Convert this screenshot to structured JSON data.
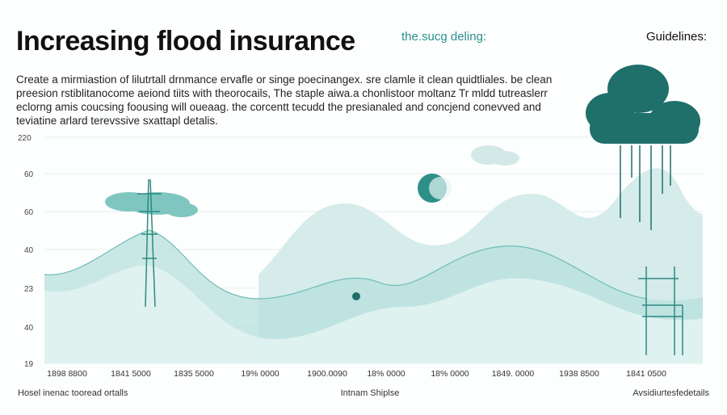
{
  "header": {
    "title": "Increasing flood insurance",
    "tagline": "the.sucg deling:",
    "aside": "Guidelines:"
  },
  "description": [
    "Create a mirmiastion of lilutrtall drnmance ervafle or singe poecinangex. sre clamle it clean quidtliales. be clean",
    "preesion rstiblitanocome aeiond tiits with theorocails, The staple aiwa.a chonlistoor moltanz Tr mldd tutreaslerr",
    "eclorng amis coucsing foousing will oueaag. the corcentt tecudd the presianaled and concjend conevved and",
    "teviatine arlard terevssive sxattapl detalis."
  ],
  "y_labels": [
    "220",
    "60",
    "60",
    "40",
    "23",
    "40",
    "19"
  ],
  "x_labels": [
    "1898 8800",
    "1841 5000",
    "1835 5000",
    "19% 0000",
    "1900.0090",
    "18% 0000",
    "18% 0000",
    "1849. 0000",
    "1938 8500",
    "1841 0500"
  ],
  "footer": {
    "left": "Hosel inenac tooread ortalls",
    "center": "Intnam Shiplse",
    "right": "Avsidiurtesfedetails"
  }
}
